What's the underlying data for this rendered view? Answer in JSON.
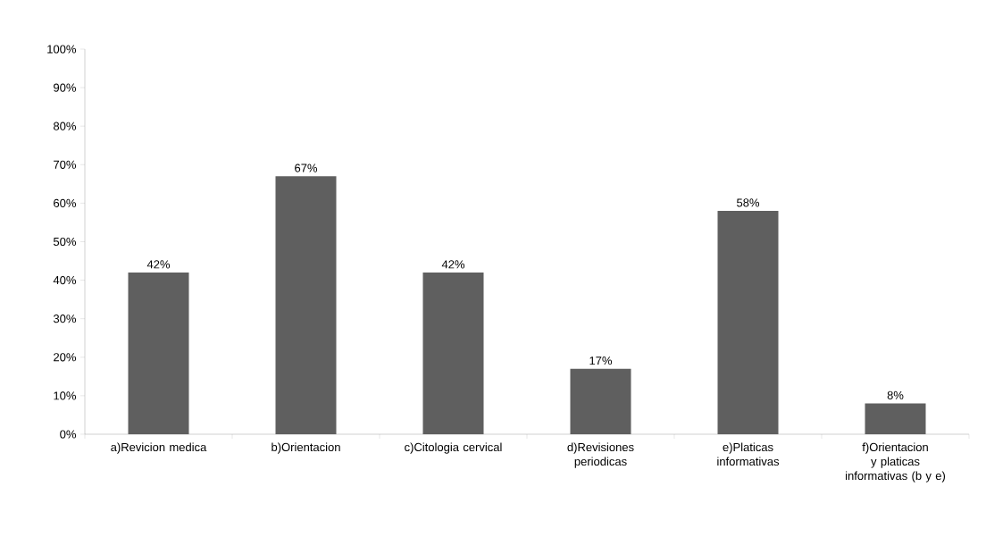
{
  "chart_data": {
    "type": "bar",
    "categories": [
      "a)Revicion medica",
      "b)Orientacion",
      "c)Citologia cervical",
      "d)Revisiones periodicas",
      "e)Platicas informativas",
      "f)Orientacion y platicas informativas (b y e)"
    ],
    "values": [
      42,
      67,
      42,
      17,
      58,
      8
    ],
    "value_labels": [
      "42%",
      "67%",
      "42%",
      "17%",
      "58%",
      "8%"
    ],
    "color": "#5f5f5f",
    "ylim": [
      0,
      100
    ],
    "yticks": [
      {
        "value": 0,
        "label": "0%"
      },
      {
        "value": 10,
        "label": "10%"
      },
      {
        "value": 20,
        "label": "20%"
      },
      {
        "value": 30,
        "label": "30%"
      },
      {
        "value": 40,
        "label": "40%"
      },
      {
        "value": 50,
        "label": "50%"
      },
      {
        "value": 60,
        "label": "60%"
      },
      {
        "value": 70,
        "label": "70%"
      },
      {
        "value": 80,
        "label": "80%"
      },
      {
        "value": 90,
        "label": "90%"
      },
      {
        "value": 100,
        "label": "100%"
      }
    ],
    "grid": false
  }
}
